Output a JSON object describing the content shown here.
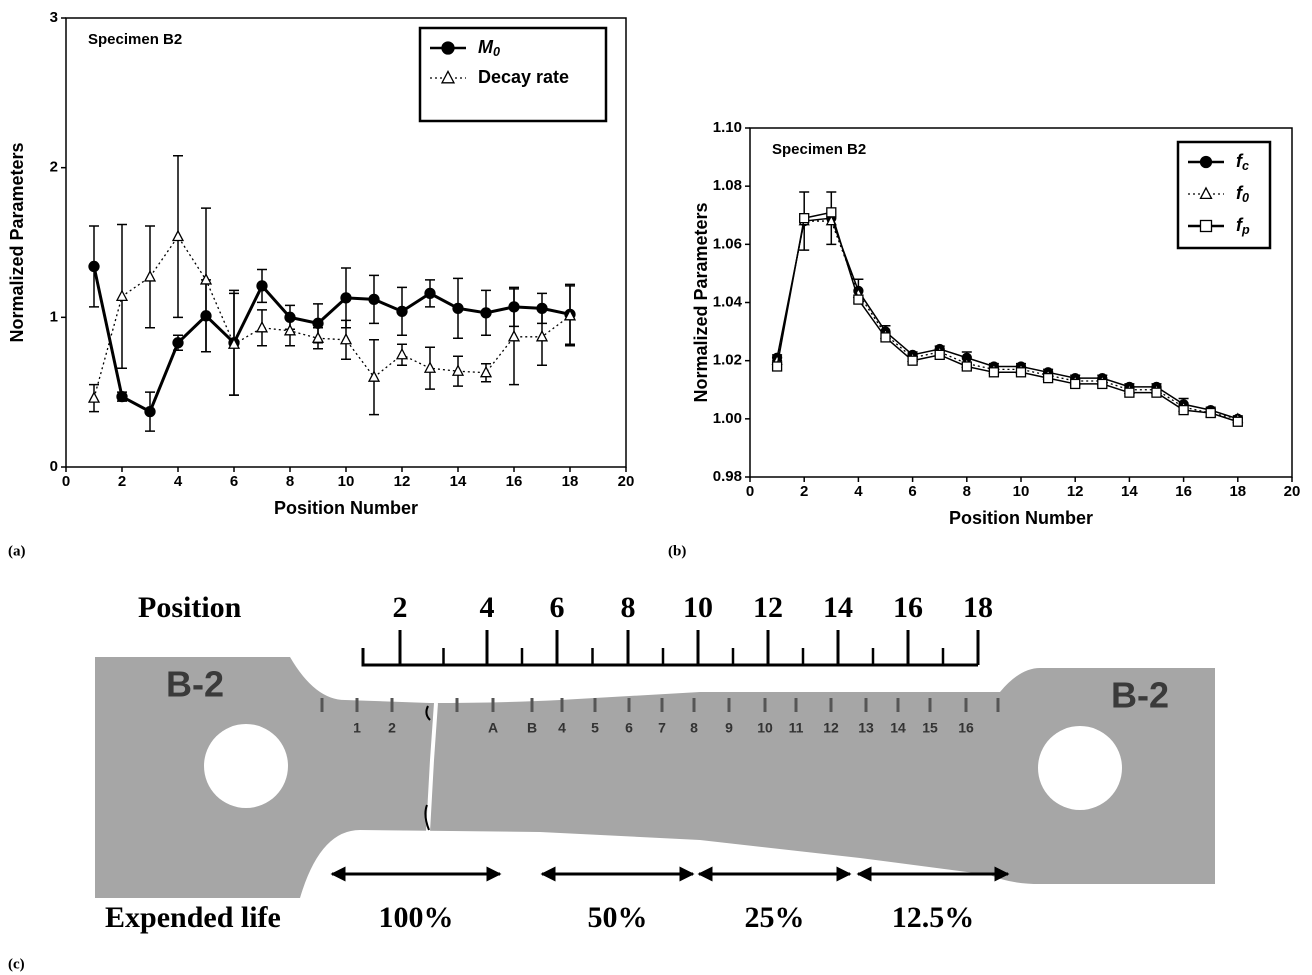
{
  "chart_data": [
    {
      "type": "line",
      "annotation": "Specimen B2",
      "x_label": "Position Number",
      "y_label": "Normalized Parameters",
      "x": [
        1,
        2,
        3,
        4,
        5,
        6,
        7,
        8,
        9,
        10,
        11,
        12,
        13,
        14,
        15,
        16,
        17,
        18
      ],
      "xlim": [
        0,
        20
      ],
      "xticks": [
        0,
        2,
        4,
        6,
        8,
        10,
        12,
        14,
        16,
        18,
        20
      ],
      "ylim": [
        0,
        3
      ],
      "yticks": [
        0,
        1,
        2,
        3
      ],
      "legend": "upper right",
      "series": [
        {
          "name": "M0",
          "color": "#000000",
          "line_style": "solid",
          "marker": "circle",
          "values": [
            1.34,
            0.47,
            0.37,
            0.83,
            1.01,
            0.83,
            1.21,
            1.0,
            0.96,
            1.13,
            1.12,
            1.04,
            1.16,
            1.06,
            1.03,
            1.07,
            1.06,
            1.02
          ],
          "errors": [
            0.27,
            0.03,
            0.13,
            0.05,
            0.24,
            0.35,
            0.11,
            0.08,
            0.13,
            0.2,
            0.16,
            0.16,
            0.09,
            0.2,
            0.15,
            0.13,
            0.1,
            0.2
          ]
        },
        {
          "name": "Decay rate",
          "color": "#000000",
          "line_style": "dotted",
          "marker": "triangle",
          "values": [
            0.46,
            1.14,
            1.27,
            1.54,
            1.25,
            0.82,
            0.93,
            0.91,
            0.86,
            0.85,
            0.6,
            0.75,
            0.66,
            0.64,
            0.63,
            0.87,
            0.87,
            1.01
          ],
          "errors": [
            0.09,
            0.48,
            0.34,
            0.54,
            0.48,
            0.34,
            0.12,
            0.1,
            0.07,
            0.13,
            0.25,
            0.07,
            0.14,
            0.1,
            0.06,
            0.32,
            0.19,
            0.2
          ]
        }
      ]
    },
    {
      "type": "line",
      "annotation": "Specimen B2",
      "x_label": "Position Number",
      "y_label": "Normalized Parameters",
      "x": [
        1,
        2,
        3,
        4,
        5,
        6,
        7,
        8,
        9,
        10,
        11,
        12,
        13,
        14,
        15,
        16,
        17,
        18
      ],
      "xlim": [
        0,
        20
      ],
      "xticks": [
        0,
        2,
        4,
        6,
        8,
        10,
        12,
        14,
        16,
        18,
        20
      ],
      "ylim": [
        0.98,
        1.1
      ],
      "yticks": [
        0.98,
        {
          "value": 1,
          "label": "1.00"
        },
        1.02,
        1.04,
        1.06,
        1.08,
        {
          "value": 1.1,
          "label": "1.10"
        }
      ],
      "legend": "upper right",
      "series": [
        {
          "name": "fc",
          "color": "#000000",
          "line_style": "solid",
          "marker": "circle",
          "values": [
            1.021,
            1.068,
            1.069,
            1.044,
            1.03,
            1.022,
            1.024,
            1.021,
            1.018,
            1.018,
            1.016,
            1.014,
            1.014,
            1.011,
            1.011,
            1.005,
            1.003,
            1.0
          ],
          "errors": [
            0.001,
            0.01,
            0.009,
            0.004,
            0.002,
            0.001,
            0.001,
            0.002,
            0.001,
            0.001,
            0.001,
            0.001,
            0.001,
            0.001,
            0.001,
            0.002,
            0.001,
            0.001
          ]
        },
        {
          "name": "f0",
          "color": "#000000",
          "line_style": "dotted",
          "marker": "triangle",
          "values": [
            1.02,
            1.068,
            1.068,
            1.043,
            1.029,
            1.021,
            1.023,
            1.019,
            1.017,
            1.017,
            1.015,
            1.013,
            1.013,
            1.01,
            1.01,
            1.004,
            1.002,
            1.0
          ]
        },
        {
          "name": "fp",
          "color": "#000000",
          "line_style": "solid",
          "marker": "square",
          "values": [
            1.018,
            1.069,
            1.071,
            1.041,
            1.028,
            1.02,
            1.022,
            1.018,
            1.016,
            1.016,
            1.014,
            1.012,
            1.012,
            1.009,
            1.009,
            1.003,
            1.002,
            0.999
          ]
        }
      ]
    }
  ],
  "panel_labels": [
    "(a)",
    "(b)",
    "(c)"
  ],
  "diagram": {
    "position_label": "Position",
    "ruler_labels": [
      "2",
      "4",
      "6",
      "8",
      "10",
      "12",
      "14",
      "16",
      "18"
    ],
    "specimen_labels": [
      "B-2",
      "B-2"
    ],
    "station_labels": [
      "1",
      "2",
      "A",
      "B",
      "4",
      "5",
      "6",
      "7",
      "8",
      "9",
      "10",
      "11",
      "12",
      "13",
      "14",
      "15",
      "16"
    ],
    "expended_life_label": "Expended life",
    "life_segments": [
      "100%",
      "50%",
      "25%",
      "12.5%"
    ]
  }
}
